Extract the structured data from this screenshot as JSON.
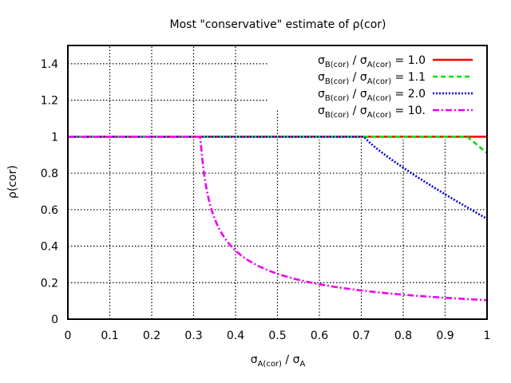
{
  "chart_data": {
    "type": "line",
    "title": "Most \"conservative\" estimate of ρ(cor)",
    "xlabel": {
      "main1": "σ",
      "sub1": "A(cor)",
      "main2": " / σ",
      "sub2": "A"
    },
    "ylabel": "ρ(cor)",
    "xlim": [
      0,
      1
    ],
    "ylim": [
      0,
      1.5
    ],
    "x_ticks": [
      "0",
      "0.1",
      "0.2",
      "0.3",
      "0.4",
      "0.5",
      "0.6",
      "0.7",
      "0.8",
      "0.9",
      "1"
    ],
    "y_ticks": [
      "0",
      "0.2",
      "0.4",
      "0.6",
      "0.8",
      "1",
      "1.2",
      "1.4"
    ],
    "grid": true,
    "legend_position": "top-right",
    "series": [
      {
        "name": "1.0",
        "ratio": 1.0,
        "color": "#ff0000",
        "dash": "solid",
        "legend": {
          "s1": "σ",
          "b1": "B(cor)",
          "mid": " / σ",
          "b2": "A(cor)",
          "eq": " = 1.0"
        }
      },
      {
        "name": "1.1",
        "ratio": 1.1,
        "color": "#00dd00",
        "dash": "dashed",
        "legend": {
          "s1": "σ",
          "b1": "B(cor)",
          "mid": " / σ",
          "b2": "A(cor)",
          "eq": " = 1.1"
        }
      },
      {
        "name": "2.0",
        "ratio": 2.0,
        "color": "#0000cc",
        "dash": "dotted",
        "legend": {
          "s1": "σ",
          "b1": "B(cor)",
          "mid": " / σ",
          "b2": "A(cor)",
          "eq": " = 2.0"
        }
      },
      {
        "name": "10.",
        "ratio": 10.0,
        "color": "#ee00ee",
        "dash": "dashdot",
        "legend": {
          "s1": "σ",
          "b1": "B(cor)",
          "mid": " / σ",
          "b2": "A(cor)",
          "eq": " = 10."
        }
      }
    ]
  }
}
